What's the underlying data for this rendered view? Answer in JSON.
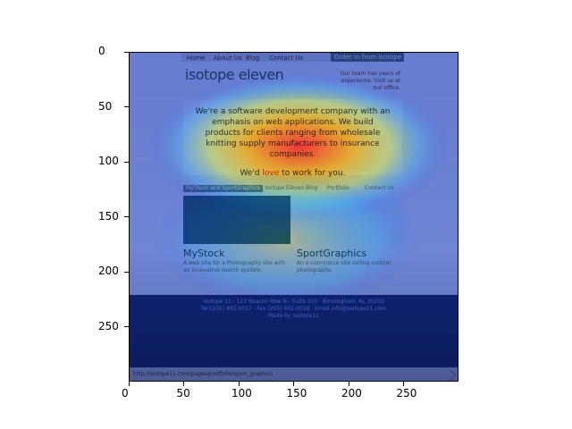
{
  "axes": {
    "x_ticks": [
      "0",
      "50",
      "100",
      "150",
      "200",
      "250"
    ],
    "y_ticks": [
      "0",
      "50",
      "100",
      "150",
      "200",
      "250"
    ]
  },
  "webpage": {
    "nav": {
      "items": [
        "Home",
        "About Us",
        "Blog",
        "Contact Us"
      ],
      "cta": "Order in from Isotope Eleven"
    },
    "logo": "isotope eleven",
    "tagline": "Our team has years of experience. Visit us at our office.",
    "hero": {
      "text": "We're a software development company with an emphasis on web applications. We build products for clients ranging from wholesale knitting supply manufacturers to insurance companies.",
      "cta_prefix": "We'd",
      "cta_love": "love",
      "cta_suffix": "to work for you."
    },
    "tabs": [
      "MyStock and SportGraphics",
      "Isotope Eleven Blog",
      "Portfolio",
      "Contact Us"
    ],
    "products": [
      {
        "title": "MyStock",
        "desc": "A web site for a Photography site with an innovative search system."
      },
      {
        "title": "SportGraphics",
        "desc": "An e-commerce site selling custom photographs."
      }
    ],
    "footer": {
      "lines": [
        "Isotope 11 · 123 Beacon Row N · Suite 100 · Birmingham, AL 35203",
        "Tel (205) 402-0017 · Fax (205) 402-0018 · Email info@isotope11.com",
        "Made by Isotope11"
      ]
    },
    "status": "http://isotope11.com/pages/portfolio/sport_graphics"
  }
}
